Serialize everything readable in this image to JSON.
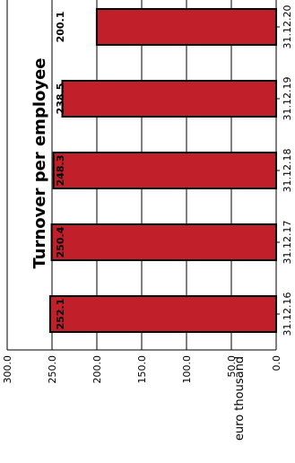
{
  "chart_data": {
    "type": "bar",
    "orientation": "rotated-90",
    "title": "Turnover per employee",
    "ylabel": "euro thousand",
    "xlabel": "",
    "categories": [
      "31.12.16",
      "31.12.17",
      "31.12.18",
      "31.12.19",
      "31.12.20"
    ],
    "values": [
      252.1,
      250.4,
      248.3,
      238.5,
      200.1
    ],
    "value_labels": [
      "252.1",
      "250.4",
      "248.3",
      "238.5",
      "200.1"
    ],
    "ylim": [
      0,
      300
    ],
    "yticks": [
      "0.0",
      "50.0",
      "100.0",
      "150.0",
      "200.0",
      "250.0",
      "300.0"
    ],
    "grid": true,
    "legend": "none",
    "colors": {
      "bar_fill": "#c1202a",
      "bar_stroke": "#000000",
      "grid": "#000000",
      "text": "#000000"
    }
  }
}
